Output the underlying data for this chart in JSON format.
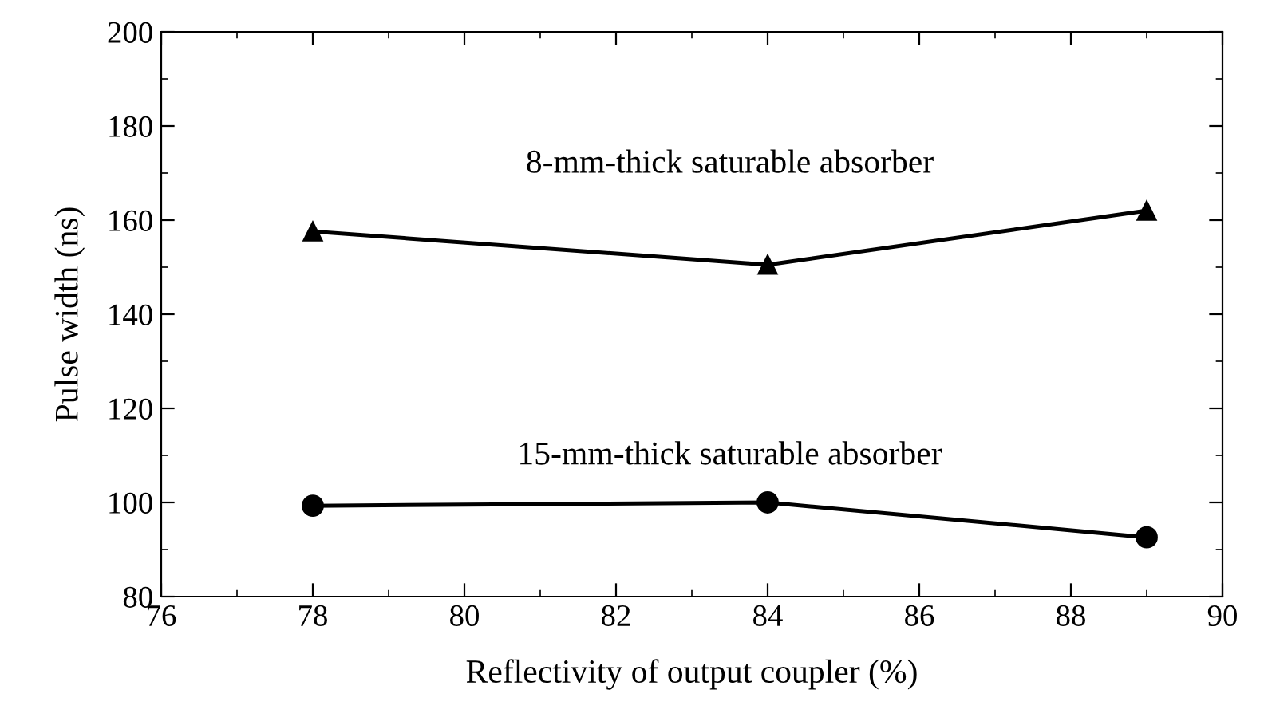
{
  "chart_data": {
    "type": "line",
    "xlabel": "Reflectivity of output coupler (%)",
    "ylabel": "Pulse width (ns)",
    "xlim": [
      76,
      90
    ],
    "xticks": [
      76,
      78,
      80,
      82,
      84,
      86,
      88,
      90
    ],
    "ylim": [
      80,
      200
    ],
    "yticks": [
      80,
      100,
      120,
      140,
      160,
      180,
      200
    ],
    "grid": false,
    "legend": false,
    "series": [
      {
        "name": "8-mm-thick saturable absorber",
        "color": "#000000",
        "marker": "triangle",
        "x": [
          78,
          84,
          89
        ],
        "values": [
          157.6,
          150.5,
          162
        ]
      },
      {
        "name": "15-mm-thick saturable absorber",
        "color": "#000000",
        "marker": "circle",
        "x": [
          78,
          84,
          89
        ],
        "values": [
          99.3,
          100,
          92.6
        ]
      }
    ]
  }
}
